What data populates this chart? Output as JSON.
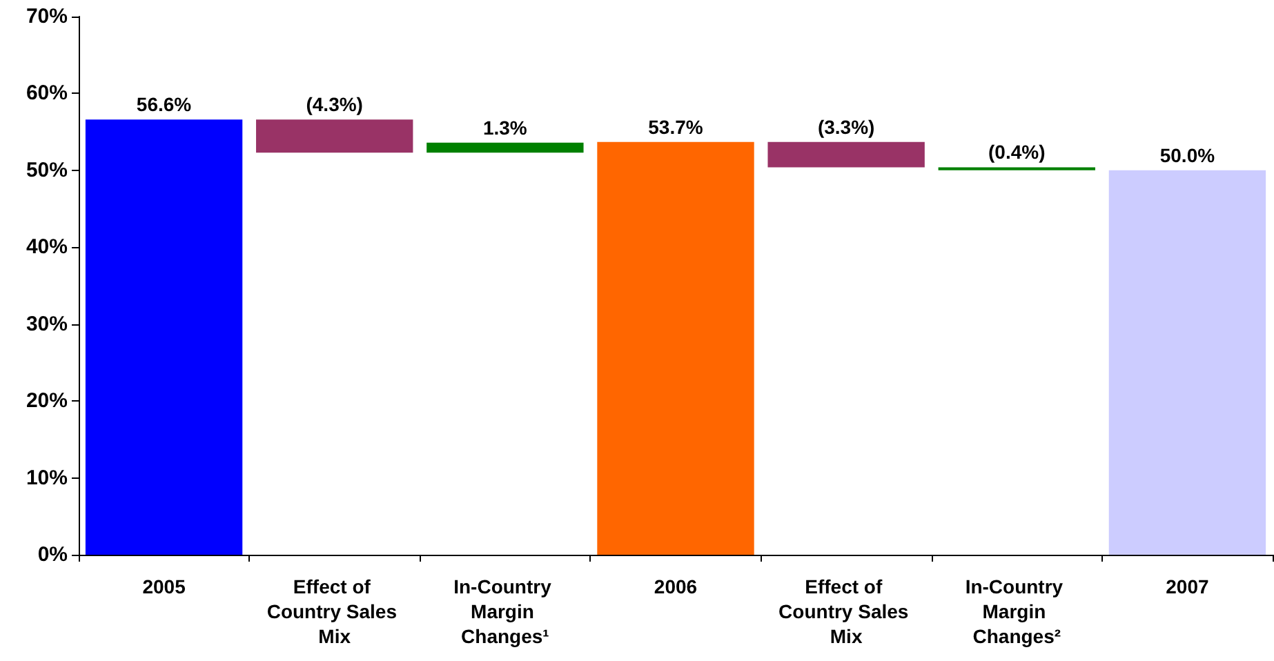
{
  "chart_data": {
    "type": "bar",
    "categories": [
      "2005",
      "Effect of Country Sales Mix",
      "In-Country Margin Changes¹",
      "2006",
      "Effect of Country Sales Mix",
      "In-Country Margin Changes²",
      "2007"
    ],
    "values": [
      56.6,
      -4.3,
      1.3,
      53.7,
      -3.3,
      -0.4,
      50.0
    ],
    "base": [
      0,
      56.6,
      52.3,
      0,
      53.7,
      50.4,
      0
    ],
    "colors": [
      "#0000ff",
      "#993366",
      "#008000",
      "#ff6600",
      "#993366",
      "#008000",
      "#ccccff"
    ],
    "value_labels": [
      "56.6%",
      "(4.3%)",
      "1.3%",
      "53.7%",
      "(3.3%)",
      "(0.4%)",
      "50.0%"
    ],
    "ylim": [
      0,
      70
    ],
    "yticks": [
      {
        "value": 0,
        "label": "0%"
      },
      {
        "value": 10,
        "label": "10%"
      },
      {
        "value": 20,
        "label": "20%"
      },
      {
        "value": 30,
        "label": "30%"
      },
      {
        "value": 40,
        "label": "40%"
      },
      {
        "value": 50,
        "label": "50%"
      },
      {
        "value": 60,
        "label": "60%"
      },
      {
        "value": 70,
        "label": "70%"
      }
    ],
    "grid": false
  }
}
